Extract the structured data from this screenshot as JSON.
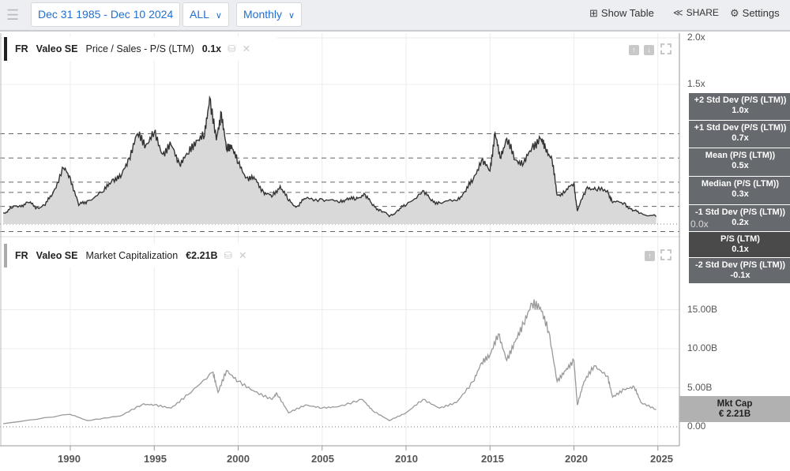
{
  "toolbar": {
    "date_range": "Dec 31 1985 - Dec 10 2024",
    "period": "ALL",
    "frequency": "Monthly",
    "show_table": "Show Table",
    "share": "SHARE",
    "settings": "Settings"
  },
  "panel_ps": {
    "exchange": "FR",
    "company": "Valeo SE",
    "metric": "Price / Sales - P/S (LTM)",
    "value": "0.1x"
  },
  "panel_mc": {
    "exchange": "FR",
    "company": "Valeo SE",
    "metric": "Market Capitalization",
    "value": "€2.21B"
  },
  "ps_axis": [
    "2.0x",
    "1.5x",
    "0.0x"
  ],
  "mc_axis": [
    "15.00B",
    "10.00B",
    "5.00B",
    "0.00"
  ],
  "x_axis": [
    "1990",
    "1995",
    "2000",
    "2005",
    "2010",
    "2015",
    "2020",
    "2025"
  ],
  "ps_labels": [
    {
      "name": "+2 Std Dev (P/S (LTM))",
      "value": "1.0x"
    },
    {
      "name": "+1 Std Dev (P/S (LTM))",
      "value": "0.7x"
    },
    {
      "name": "Mean (P/S (LTM))",
      "value": "0.5x"
    },
    {
      "name": "Median (P/S (LTM))",
      "value": "0.3x"
    },
    {
      "name": "-1 Std Dev (P/S (LTM))",
      "value": "0.2x"
    },
    {
      "name": "P/S (LTM)",
      "value": "0.1x"
    },
    {
      "name": "-2 Std Dev (P/S (LTM))",
      "value": "-0.1x"
    }
  ],
  "mc_label": {
    "name": "Mkt Cap",
    "value": "€ 2.21B"
  },
  "chart_data": [
    {
      "type": "area",
      "title": "Price / Sales - P/S (LTM)",
      "ylim": [
        -0.15,
        2.0
      ],
      "reference_lines": [
        0.97,
        0.71,
        0.45,
        0.34,
        0.19,
        -0.08
      ],
      "x": [
        1986,
        1986.5,
        1987,
        1987.5,
        1988,
        1988.5,
        1989,
        1989.6,
        1990,
        1990.5,
        1991,
        1992,
        1992.5,
        1993,
        1993.5,
        1994,
        1994.5,
        1995,
        1995.5,
        1996,
        1996.5,
        1997,
        1997.5,
        1998,
        1998.3,
        1998.7,
        1999,
        1999.3,
        1999.6,
        2000,
        2000.5,
        2001,
        2001.5,
        2002,
        2002.5,
        2003,
        2003.5,
        2004,
        2005,
        2006,
        2006.5,
        2007,
        2007.5,
        2008,
        2008.5,
        2009,
        2009.5,
        2010,
        2011,
        2011.5,
        2012,
        2013,
        2013.5,
        2014,
        2014.5,
        2015,
        2015.3,
        2015.6,
        2016,
        2016.5,
        2017,
        2017.5,
        2018,
        2018.3,
        2018.7,
        2019,
        2019.5,
        2020,
        2020.2,
        2020.8,
        2021.3,
        2022,
        2022.3,
        2023,
        2023.5,
        2024,
        2024.9
      ],
      "values": [
        0.12,
        0.17,
        0.2,
        0.23,
        0.18,
        0.2,
        0.35,
        0.6,
        0.5,
        0.2,
        0.25,
        0.35,
        0.48,
        0.5,
        0.71,
        0.97,
        0.85,
        0.98,
        0.75,
        0.85,
        0.65,
        0.75,
        0.9,
        0.95,
        1.36,
        0.9,
        1.2,
        0.8,
        0.85,
        0.65,
        0.5,
        0.48,
        0.35,
        0.29,
        0.41,
        0.25,
        0.19,
        0.27,
        0.27,
        0.23,
        0.28,
        0.26,
        0.33,
        0.2,
        0.15,
        0.08,
        0.15,
        0.2,
        0.36,
        0.25,
        0.23,
        0.25,
        0.35,
        0.48,
        0.69,
        0.57,
        0.98,
        0.71,
        0.92,
        0.69,
        0.65,
        0.82,
        0.92,
        0.82,
        0.69,
        0.31,
        0.35,
        0.44,
        0.14,
        0.4,
        0.37,
        0.36,
        0.23,
        0.23,
        0.14,
        0.12,
        0.08
      ]
    },
    {
      "type": "line",
      "title": "Market Capitalization",
      "ylabel": "EUR",
      "ylim": [
        0,
        16
      ],
      "x": [
        1986,
        1990,
        1991,
        1993,
        1994.3,
        1995,
        1996,
        1997,
        1998.5,
        1998.8,
        1999.3,
        2000,
        2001,
        2002,
        2002.3,
        2003,
        2004,
        2005,
        2006,
        2007.4,
        2008,
        2009,
        2010,
        2011,
        2012,
        2013,
        2014,
        2014.5,
        2015,
        2015.5,
        2016,
        2016.5,
        2017,
        2017.5,
        2018,
        2018.5,
        2019,
        2019.5,
        2020,
        2020.2,
        2020.6,
        2021.2,
        2022,
        2022.3,
        2023,
        2023.6,
        2024,
        2024.9
      ],
      "values": [
        0.4,
        1.6,
        0.8,
        1.4,
        2.9,
        2.8,
        2.4,
        4.1,
        7.0,
        4.4,
        7.2,
        5.8,
        4.5,
        3.5,
        4.3,
        1.8,
        2.8,
        2.4,
        2.6,
        3.5,
        2.1,
        0.8,
        1.8,
        3.5,
        2.4,
        3.1,
        5.8,
        8.2,
        9.2,
        11.9,
        8.5,
        10.9,
        13.2,
        15.8,
        15.3,
        12.2,
        5.8,
        7.2,
        8.5,
        2.8,
        5.8,
        7.8,
        6.5,
        3.8,
        4.8,
        5.1,
        3.1,
        2.21
      ]
    }
  ],
  "colors": {
    "accent": "#1f6fd1",
    "ps_line": "#333333",
    "ps_fill": "#d9d9d9",
    "mc_line": "#999999",
    "label_bg": "#66696d",
    "label_current": "#4a4a4a"
  }
}
